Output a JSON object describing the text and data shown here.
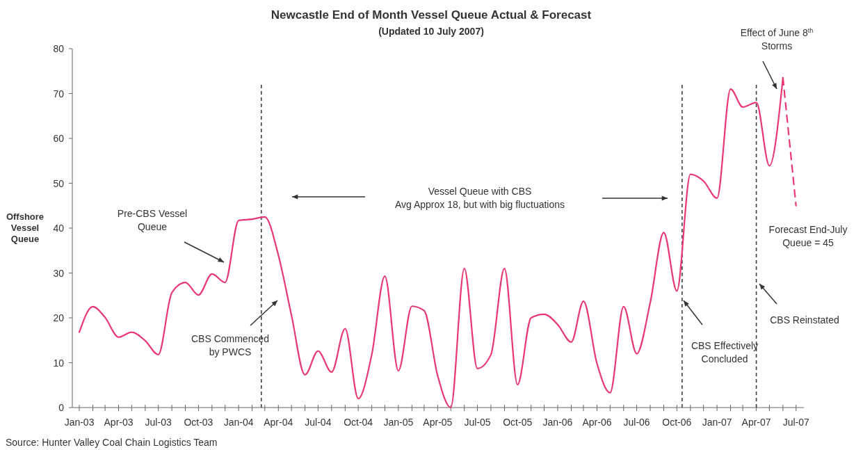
{
  "chart_data": {
    "type": "line",
    "title": "Newcastle End of Month Vessel Queue Actual & Forecast",
    "subtitle": "(Updated 10 July 2007)",
    "ylabel": "Offshore\nVessel\nQueue",
    "x": [
      "2003-01",
      "2003-02",
      "2003-03",
      "2003-04",
      "2003-05",
      "2003-06",
      "2003-07",
      "2003-08",
      "2003-09",
      "2003-10",
      "2003-11",
      "2003-12",
      "2004-01",
      "2004-02",
      "2004-03",
      "2004-04",
      "2004-05",
      "2004-06",
      "2004-07",
      "2004-08",
      "2004-09",
      "2004-10",
      "2004-11",
      "2004-12",
      "2005-01",
      "2005-02",
      "2005-03",
      "2005-04",
      "2005-05",
      "2005-06",
      "2005-07",
      "2005-08",
      "2005-09",
      "2005-10",
      "2005-11",
      "2005-12",
      "2006-01",
      "2006-02",
      "2006-03",
      "2006-04",
      "2006-05",
      "2006-06",
      "2006-07",
      "2006-08",
      "2006-09",
      "2006-10",
      "2006-11",
      "2006-12",
      "2007-01",
      "2007-02",
      "2007-03",
      "2007-04",
      "2007-05",
      "2007-06",
      "2007-07"
    ],
    "series": [
      {
        "color": "#e8386e",
        "line_style": "solid",
        "values": [
          16.8,
          22.5,
          20.1,
          15.7,
          16.8,
          14.9,
          11.8,
          25.6,
          27.9,
          25.1,
          29.8,
          27.9,
          41.7,
          42,
          42.5,
          34,
          20.6,
          7.3,
          12.6,
          7.9,
          17.6,
          2,
          11.8,
          29.3,
          8.2,
          22.6,
          21.6,
          7.1,
          0,
          31,
          8.7,
          11.8,
          31,
          5.1,
          20,
          20.8,
          18.5,
          14.6,
          23.7,
          9.8,
          3.3,
          22.5,
          12,
          23.4,
          39,
          26,
          52,
          50.5,
          46.7,
          71,
          67,
          68,
          53.9,
          73.5,
          null
        ]
      },
      {
        "color": "#e8386e",
        "line_style": "dashed",
        "values": [
          null,
          null,
          null,
          null,
          null,
          null,
          null,
          null,
          null,
          null,
          null,
          null,
          null,
          null,
          null,
          null,
          null,
          null,
          null,
          null,
          null,
          null,
          null,
          null,
          null,
          null,
          null,
          null,
          null,
          null,
          null,
          null,
          null,
          null,
          null,
          null,
          null,
          null,
          null,
          null,
          null,
          null,
          null,
          null,
          null,
          null,
          null,
          null,
          null,
          null,
          null,
          null,
          null,
          73.5,
          45
        ]
      }
    ],
    "xlim": [
      "2002-12-16",
      "2007-07-19"
    ],
    "xticks": [
      {
        "value": "2003-01",
        "label": "Jan-03"
      },
      {
        "value": "2003-02",
        "label": null
      },
      {
        "value": "2003-03",
        "label": null
      },
      {
        "value": "2003-04",
        "label": "Apr-03"
      },
      {
        "value": "2003-05",
        "label": null
      },
      {
        "value": "2003-06",
        "label": null
      },
      {
        "value": "2003-07",
        "label": "Jul-03"
      },
      {
        "value": "2003-08",
        "label": null
      },
      {
        "value": "2003-09",
        "label": null
      },
      {
        "value": "2003-10",
        "label": "Oct-03"
      },
      {
        "value": "2003-11",
        "label": null
      },
      {
        "value": "2003-12",
        "label": null
      },
      {
        "value": "2004-01",
        "label": "Jan-04"
      },
      {
        "value": "2004-02",
        "label": null
      },
      {
        "value": "2004-03",
        "label": null
      },
      {
        "value": "2004-04",
        "label": "Apr-04"
      },
      {
        "value": "2004-05",
        "label": null
      },
      {
        "value": "2004-06",
        "label": null
      },
      {
        "value": "2004-07",
        "label": "Jul-04"
      },
      {
        "value": "2004-08",
        "label": null
      },
      {
        "value": "2004-09",
        "label": null
      },
      {
        "value": "2004-10",
        "label": "Oct-04"
      },
      {
        "value": "2004-11",
        "label": null
      },
      {
        "value": "2004-12",
        "label": null
      },
      {
        "value": "2005-01",
        "label": "Jan-05"
      },
      {
        "value": "2005-02",
        "label": null
      },
      {
        "value": "2005-03",
        "label": null
      },
      {
        "value": "2005-04",
        "label": "Apr-05"
      },
      {
        "value": "2005-05",
        "label": null
      },
      {
        "value": "2005-06",
        "label": null
      },
      {
        "value": "2005-07",
        "label": "Jul-05"
      },
      {
        "value": "2005-08",
        "label": null
      },
      {
        "value": "2005-09",
        "label": null
      },
      {
        "value": "2005-10",
        "label": "Oct-05"
      },
      {
        "value": "2005-11",
        "label": null
      },
      {
        "value": "2005-12",
        "label": null
      },
      {
        "value": "2006-01",
        "label": "Jan-06"
      },
      {
        "value": "2006-02",
        "label": null
      },
      {
        "value": "2006-03",
        "label": null
      },
      {
        "value": "2006-04",
        "label": "Apr-06"
      },
      {
        "value": "2006-05",
        "label": null
      },
      {
        "value": "2006-06",
        "label": null
      },
      {
        "value": "2006-07",
        "label": "Jul-06"
      },
      {
        "value": "2006-08",
        "label": null
      },
      {
        "value": "2006-09",
        "label": null
      },
      {
        "value": "2006-10",
        "label": "Oct-06"
      },
      {
        "value": "2006-11",
        "label": null
      },
      {
        "value": "2006-12",
        "label": null
      },
      {
        "value": "2007-01",
        "label": "Jan-07"
      },
      {
        "value": "2007-02",
        "label": null
      },
      {
        "value": "2007-03",
        "label": null
      },
      {
        "value": "2007-04",
        "label": "Apr-07"
      },
      {
        "value": "2007-05",
        "label": null
      },
      {
        "value": "2007-06",
        "label": null
      },
      {
        "value": "2007-07",
        "label": "Jul-07"
      }
    ],
    "ylim": [
      0,
      80
    ],
    "yticks": [
      0,
      10,
      20,
      30,
      40,
      50,
      60,
      70,
      80
    ],
    "ref_lines": [
      {
        "axis": "x",
        "value": "2004-02-22",
        "color": "#333333",
        "line_style": "dashed"
      },
      {
        "axis": "x",
        "value": "2006-10-13",
        "color": "#333333",
        "line_style": "dashed"
      },
      {
        "axis": "x",
        "value": "2007-04-01",
        "color": "#333333",
        "line_style": "dashed"
      }
    ],
    "marker": "none",
    "annotations": [
      "Pre-CBS Vessel\nQueue",
      "CBS Commenced\nby PWCS",
      "Vessel Queue with CBS\nAvg Approx 18, but with big fluctuations",
      "CBS Effectively\nConcluded",
      "CBS Reinstated",
      "Forecast End-July\nQueue = 45",
      "Effect of June 8$^{th}$\nStorms",
      "Source: Hunter Valley Coal Chain Logistics Team"
    ]
  }
}
